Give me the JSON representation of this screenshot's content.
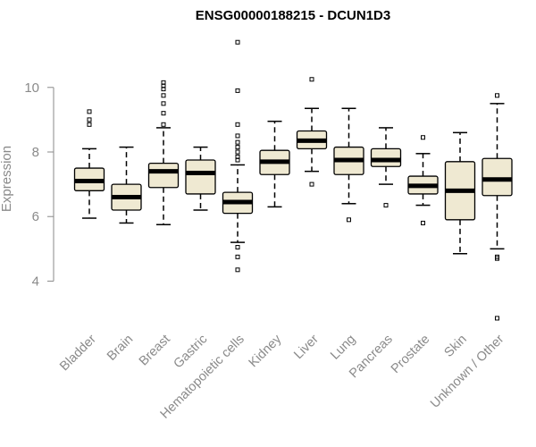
{
  "chart_data": {
    "type": "boxplot",
    "title": "ENSG00000188215 - DCUN1D3",
    "ylabel": "Expression",
    "xlabel": "",
    "ylim": [
      2.6,
      11.6
    ],
    "yticks": [
      4,
      6,
      8,
      10
    ],
    "grid": false,
    "box_color": "#efe9d2",
    "categories": [
      "Bladder",
      "Brain",
      "Breast",
      "Gastric",
      "Hematopoietic cells",
      "Kidney",
      "Liver",
      "Lung",
      "Pancreas",
      "Prostate",
      "Skin",
      "Unknown / Other"
    ],
    "boxes": [
      {
        "whislo": 5.95,
        "q1": 6.8,
        "med": 7.1,
        "q3": 7.5,
        "whishi": 8.1,
        "fliers": [
          8.85,
          9.0,
          9.25
        ]
      },
      {
        "whislo": 5.8,
        "q1": 6.2,
        "med": 6.6,
        "q3": 7.0,
        "whishi": 8.15,
        "fliers": []
      },
      {
        "whislo": 5.75,
        "q1": 6.9,
        "med": 7.4,
        "q3": 7.65,
        "whishi": 8.75,
        "fliers": [
          8.85,
          9.2,
          9.5,
          9.75,
          9.95,
          10.05,
          10.15
        ]
      },
      {
        "whislo": 6.2,
        "q1": 6.7,
        "med": 7.35,
        "q3": 7.75,
        "whishi": 8.15,
        "fliers": []
      },
      {
        "whislo": 5.2,
        "q1": 6.1,
        "med": 6.45,
        "q3": 6.75,
        "whishi": 7.6,
        "fliers": [
          4.35,
          4.75,
          5.05,
          7.75,
          7.85,
          8.0,
          8.15,
          8.3,
          8.5,
          8.85,
          9.9,
          11.4
        ]
      },
      {
        "whislo": 6.3,
        "q1": 7.3,
        "med": 7.7,
        "q3": 8.05,
        "whishi": 8.95,
        "fliers": []
      },
      {
        "whislo": 7.4,
        "q1": 8.1,
        "med": 8.35,
        "q3": 8.65,
        "whishi": 9.35,
        "fliers": [
          7.0,
          10.25
        ]
      },
      {
        "whislo": 6.4,
        "q1": 7.3,
        "med": 7.75,
        "q3": 8.15,
        "whishi": 9.35,
        "fliers": [
          5.9
        ]
      },
      {
        "whislo": 7.0,
        "q1": 7.55,
        "med": 7.75,
        "q3": 8.1,
        "whishi": 8.75,
        "fliers": [
          6.35
        ]
      },
      {
        "whislo": 6.35,
        "q1": 6.7,
        "med": 6.95,
        "q3": 7.25,
        "whishi": 7.95,
        "fliers": [
          5.8,
          8.45
        ]
      },
      {
        "whislo": 4.85,
        "q1": 5.9,
        "med": 6.8,
        "q3": 7.7,
        "whishi": 8.6,
        "fliers": []
      },
      {
        "whislo": 5.0,
        "q1": 6.65,
        "med": 7.15,
        "q3": 7.8,
        "whishi": 9.5,
        "fliers": [
          2.85,
          4.7,
          4.75,
          9.75
        ]
      }
    ]
  }
}
